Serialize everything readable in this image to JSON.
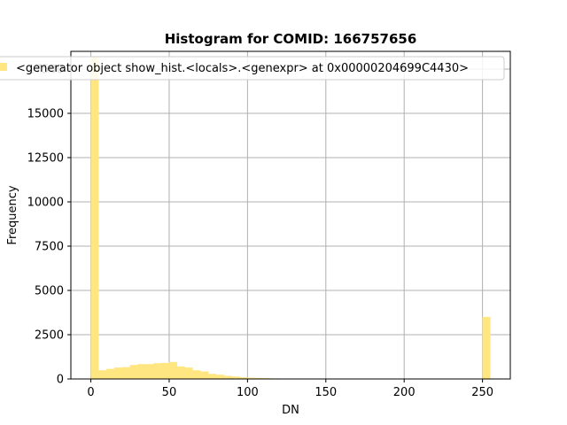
{
  "chart_data": {
    "type": "bar",
    "title": "Histogram for COMID: 166757656",
    "xlabel": "DN",
    "ylabel": "Frequency",
    "xlim": [
      -12.75,
      267.75
    ],
    "ylim": [
      0,
      18500
    ],
    "xticks": [
      0,
      50,
      100,
      150,
      200,
      250
    ],
    "yticks": [
      0,
      2500,
      5000,
      7500,
      10000,
      12500,
      15000,
      17500
    ],
    "grid": true,
    "legend_position": "top-left",
    "bar_color": "#ffe680",
    "bin_width": 5,
    "series": [
      {
        "name": "<generator object show_hist.<locals>.<genexpr> at 0x00000204699C4430>",
        "bins": [
          {
            "x": 0,
            "value": 18200
          },
          {
            "x": 5,
            "value": 480
          },
          {
            "x": 10,
            "value": 560
          },
          {
            "x": 15,
            "value": 640
          },
          {
            "x": 20,
            "value": 660
          },
          {
            "x": 25,
            "value": 780
          },
          {
            "x": 30,
            "value": 830
          },
          {
            "x": 35,
            "value": 830
          },
          {
            "x": 40,
            "value": 880
          },
          {
            "x": 45,
            "value": 900
          },
          {
            "x": 50,
            "value": 950
          },
          {
            "x": 55,
            "value": 700
          },
          {
            "x": 60,
            "value": 640
          },
          {
            "x": 65,
            "value": 480
          },
          {
            "x": 70,
            "value": 420
          },
          {
            "x": 75,
            "value": 280
          },
          {
            "x": 80,
            "value": 230
          },
          {
            "x": 85,
            "value": 170
          },
          {
            "x": 90,
            "value": 130
          },
          {
            "x": 95,
            "value": 90
          },
          {
            "x": 100,
            "value": 60
          },
          {
            "x": 105,
            "value": 50
          },
          {
            "x": 110,
            "value": 35
          },
          {
            "x": 115,
            "value": 25
          },
          {
            "x": 120,
            "value": 15
          },
          {
            "x": 125,
            "value": 10
          },
          {
            "x": 130,
            "value": 5
          },
          {
            "x": 250,
            "value": 3500
          }
        ]
      }
    ]
  }
}
